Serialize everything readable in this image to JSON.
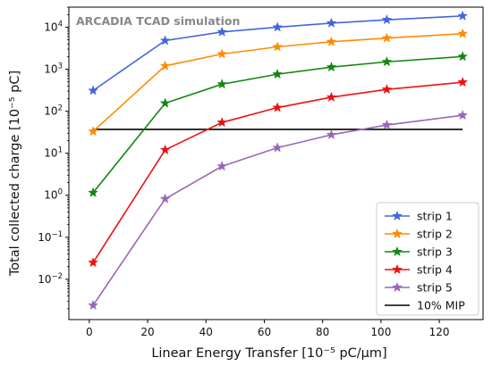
{
  "chart_data": {
    "type": "line",
    "title": "",
    "annotation": "ARCADIA TCAD simulation",
    "xlabel": "Linear Energy Transfer [10⁻⁵ pC/μm]",
    "ylabel": "Total collected charge [10⁻⁵ pC]",
    "xlim": [
      -7,
      135
    ],
    "ylim": [
      0.0011,
      30000
    ],
    "yscale": "log",
    "x_ticks": [
      0,
      20,
      40,
      60,
      80,
      100,
      120
    ],
    "x_tick_labels": [
      "0",
      "20",
      "40",
      "60",
      "80",
      "100",
      "120"
    ],
    "y_ticks": [
      0.01,
      0.1,
      1,
      10,
      100,
      1000,
      10000
    ],
    "y_tick_base": "10",
    "y_tick_exponents": [
      "−2",
      "−1",
      "0",
      "1",
      "2",
      "3",
      "4"
    ],
    "grid": false,
    "legend_position": "lower right",
    "x": [
      1.3,
      26,
      45.5,
      64.5,
      83,
      102,
      128
    ],
    "series": [
      {
        "name": "strip 1",
        "color": "#4466dd",
        "marker": "star",
        "values": [
          310,
          4800,
          7700,
          10000,
          12500,
          15000,
          18500
        ]
      },
      {
        "name": "strip 2",
        "color": "#ff8c00",
        "marker": "star",
        "values": [
          33,
          1200,
          2300,
          3400,
          4500,
          5500,
          7000
        ]
      },
      {
        "name": "strip 3",
        "color": "#118811",
        "marker": "star",
        "values": [
          1.15,
          155,
          440,
          760,
          1120,
          1500,
          2000
        ]
      },
      {
        "name": "strip 4",
        "color": "#ee1111",
        "marker": "star",
        "values": [
          0.025,
          12,
          54,
          122,
          215,
          330,
          490
        ]
      },
      {
        "name": "strip 5",
        "color": "#9966bb",
        "marker": "star",
        "values": [
          0.0024,
          0.82,
          4.9,
          13.5,
          27.5,
          47,
          80
        ]
      }
    ],
    "reference_line": {
      "name": "10% MIP",
      "color": "#000000",
      "value": 37
    }
  }
}
